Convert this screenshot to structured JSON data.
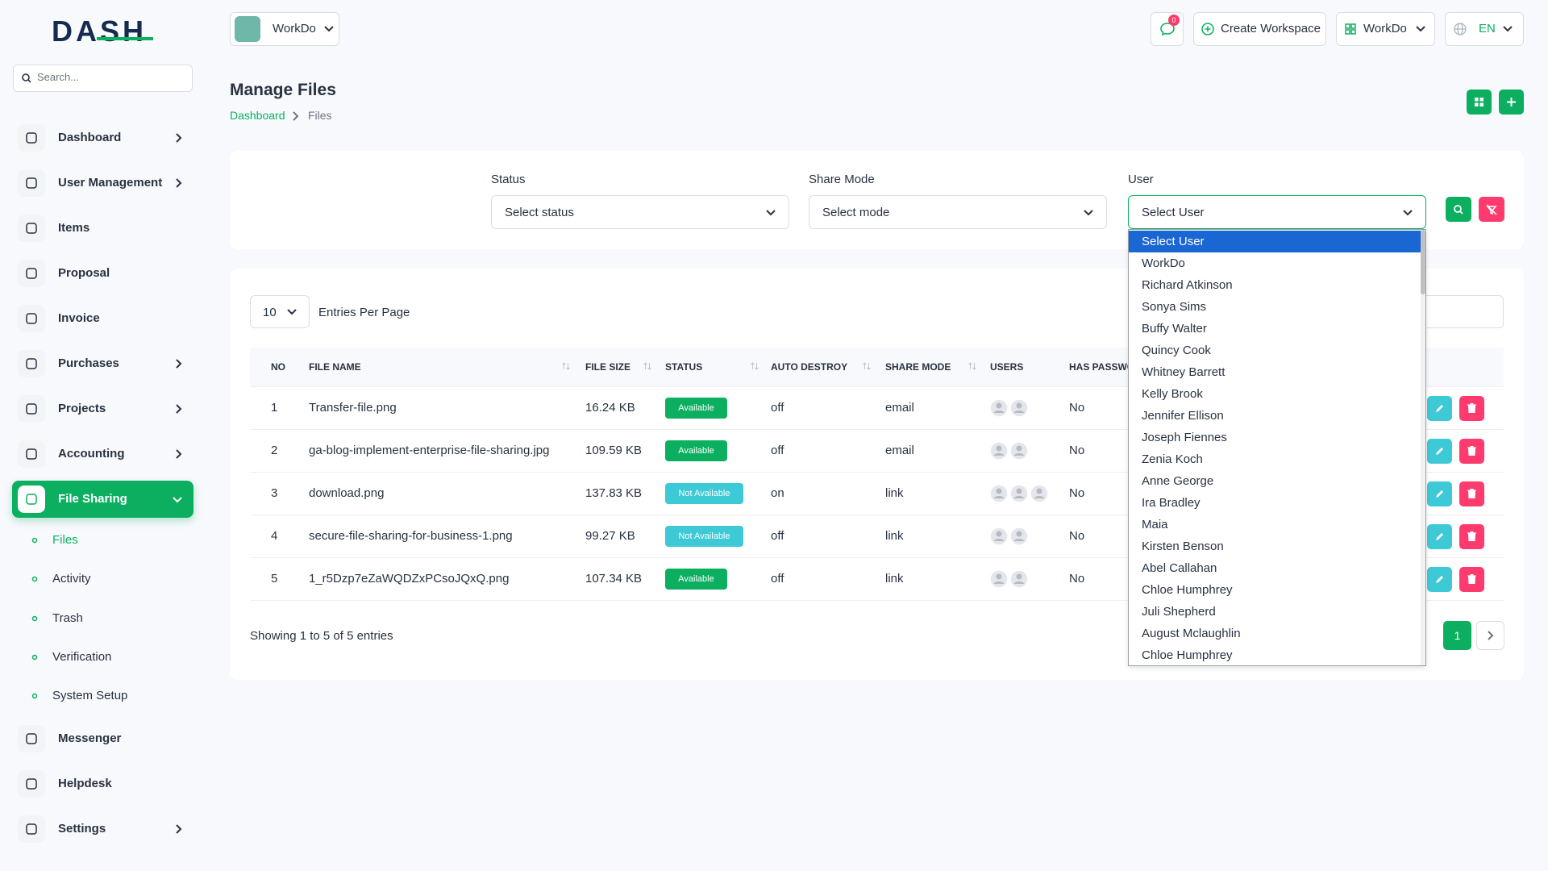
{
  "sidebar": {
    "brand": "DASH",
    "search_placeholder": "Search...",
    "nav": [
      {
        "label": "Dashboard",
        "arrow": true
      },
      {
        "label": "User Management",
        "arrow": true
      },
      {
        "label": "Items",
        "arrow": false
      },
      {
        "label": "Proposal",
        "arrow": false
      },
      {
        "label": "Invoice",
        "arrow": false
      },
      {
        "label": "Purchases",
        "arrow": true
      },
      {
        "label": "Projects",
        "arrow": true
      },
      {
        "label": "Accounting",
        "arrow": true
      },
      {
        "label": "File Sharing",
        "arrow": true,
        "expanded": true,
        "active_child": 0,
        "children": [
          "Files",
          "Activity",
          "Trash",
          "Verification",
          "System Setup"
        ]
      },
      {
        "label": "Messenger",
        "arrow": false
      },
      {
        "label": "Helpdesk",
        "arrow": false
      },
      {
        "label": "Settings",
        "arrow": true
      }
    ]
  },
  "header": {
    "workspace": "WorkDo",
    "notifications": "0",
    "create": "Create Workspace",
    "user_workspace": "WorkDo",
    "language": "EN"
  },
  "page": {
    "title": "Manage Files",
    "breadcrumb": [
      "Dashboard",
      "Files"
    ]
  },
  "filters": [
    {
      "label": "Status",
      "placeholder": "Select status"
    },
    {
      "label": "Share Mode",
      "placeholder": "Select mode"
    },
    {
      "label": "User",
      "placeholder": "Select User"
    }
  ],
  "table": {
    "page_size": "10",
    "page_size_label": "Entries Per Page",
    "columns": [
      "NO",
      "FILE NAME",
      "FILE SIZE",
      "STATUS",
      "AUTO DESTROY",
      "SHARE MODE",
      "USERS",
      "HAS PASSWORD"
    ],
    "rows": [
      [
        "1",
        "Transfer-file.png",
        "16.24 KB",
        "Available",
        "off",
        "email",
        "",
        "No"
      ],
      [
        "2",
        "ga-blog-implement-enterprise-file-sharing.jpg",
        "109.59 KB",
        "Available",
        "off",
        "email",
        "",
        "No"
      ],
      [
        "3",
        "download.png",
        "137.83 KB",
        "Not Available",
        "on",
        "link",
        "",
        "No"
      ],
      [
        "4",
        "secure-file-sharing-for-business-1.png",
        "99.27 KB",
        "Not Available",
        "off",
        "link",
        "",
        "No"
      ],
      [
        "5",
        "1_r5Dzp7eZaWQDZxPCsoJQxQ.png",
        "107.34 KB",
        "Available",
        "off",
        "link",
        "",
        "No"
      ]
    ],
    "avatars": [
      2,
      2,
      3,
      2,
      2
    ],
    "footer": "Showing 1 to 5 of 5 entries",
    "current_page": "1"
  },
  "dropdown": {
    "selected": 0,
    "options": [
      "Select User",
      "WorkDo",
      "Richard Atkinson",
      "Sonya Sims",
      "Buffy Walter",
      "Quincy Cook",
      "Whitney Barrett",
      "Kelly Brook",
      "Jennifer Ellison",
      "Joseph Fiennes",
      "Zenia Koch",
      "Anne George",
      "Ira Bradley",
      "Maia",
      "Kirsten Benson",
      "Abel Callahan",
      "Chloe Humphrey",
      "Juli Shepherd",
      "August Mclaughlin",
      "Chloe Humphrey"
    ]
  }
}
